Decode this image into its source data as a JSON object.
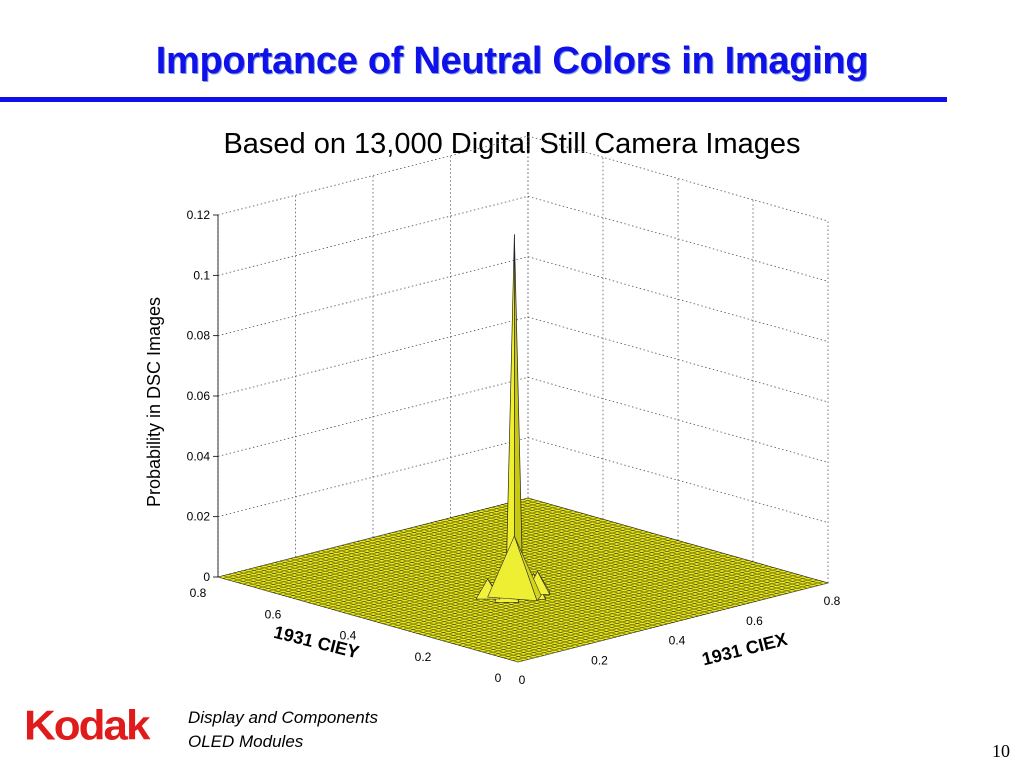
{
  "slide": {
    "title": "Importance of Neutral Colors in Imaging",
    "logo_text": "Kodak",
    "footer_line1": "Display and Components",
    "footer_line2": "OLED Modules",
    "page_number": "10",
    "colors": {
      "title": "#1010e8",
      "logo": "#e01b1b",
      "surface": "#e6e61a"
    }
  },
  "chart_data": {
    "type": "surface",
    "title": "Based on 13,000 Digital Still Camera Images",
    "xlabel": "1931 CIEX",
    "ylabel": "1931 CIEY",
    "zlabel": "Probability in DSC Images",
    "xlim": [
      0,
      0.8
    ],
    "ylim": [
      0,
      0.8
    ],
    "zlim": [
      0,
      0.12
    ],
    "x_ticks": [
      "0",
      "0.2",
      "0.4",
      "0.6",
      "0.8"
    ],
    "y_ticks": [
      "0",
      "0.2",
      "0.4",
      "0.6",
      "0.8"
    ],
    "z_ticks": [
      "0",
      "0.02",
      "0.04",
      "0.06",
      "0.08",
      "0.1",
      "0.12"
    ],
    "grid": true,
    "peak": {
      "x": 0.31,
      "y": 0.33,
      "z": 0.12
    },
    "secondary_peaks": [
      {
        "x": 0.28,
        "y": 0.32,
        "z": 0.012
      },
      {
        "x": 0.34,
        "y": 0.35,
        "z": 0.009
      },
      {
        "x": 0.33,
        "y": 0.3,
        "z": 0.008
      },
      {
        "x": 0.27,
        "y": 0.36,
        "z": 0.006
      },
      {
        "x": 0.36,
        "y": 0.32,
        "z": 0.007
      }
    ]
  }
}
